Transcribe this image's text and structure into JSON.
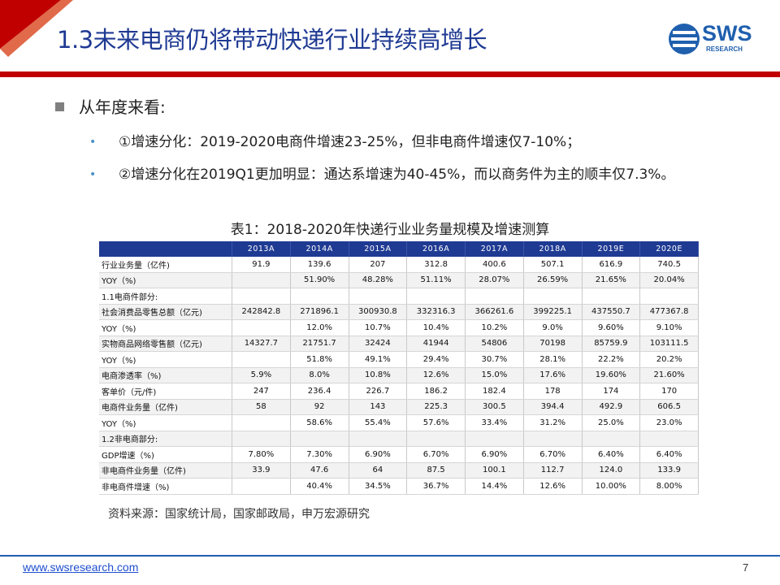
{
  "slide": {
    "title": "1.3未来电商仍将带动快递行业持续高增长",
    "logo_text": "SWS",
    "logo_sub": "RESEARCH",
    "heading": "从年度来看:",
    "bullets": [
      "①增速分化：2019-2020电商件增速23-25%，但非电商件增速仅7-10%；",
      "②增速分化在2019Q1更加明显：通达系增速为40-45%，而以商务件为主的顺丰仅7.3%。"
    ],
    "table_caption": "表1：2018-2020年快递行业业务量规模及增速测算",
    "source": "资料来源：国家统计局，国家邮政局，申万宏源研究",
    "url": "www.swsresearch.com",
    "page_number": "7"
  },
  "table": {
    "columns": [
      "",
      "2013A",
      "2014A",
      "2015A",
      "2016A",
      "2017A",
      "2018A",
      "2019E",
      "2020E"
    ],
    "rows": [
      [
        "行业业务量（亿件)",
        "91.9",
        "139.6",
        "207",
        "312.8",
        "400.6",
        "507.1",
        "616.9",
        "740.5"
      ],
      [
        "YOY（%)",
        "",
        "51.90%",
        "48.28%",
        "51.11%",
        "28.07%",
        "26.59%",
        "21.65%",
        "20.04%"
      ],
      [
        "1.1电商件部分:",
        "",
        "",
        "",
        "",
        "",
        "",
        "",
        ""
      ],
      [
        "社会消费品零售总额（亿元)",
        "242842.8",
        "271896.1",
        "300930.8",
        "332316.3",
        "366261.6",
        "399225.1",
        "437550.7",
        "477367.8"
      ],
      [
        "YOY（%)",
        "",
        "12.0%",
        "10.7%",
        "10.4%",
        "10.2%",
        "9.0%",
        "9.60%",
        "9.10%"
      ],
      [
        "实物商品网络零售额（亿元)",
        "14327.7",
        "21751.7",
        "32424",
        "41944",
        "54806",
        "70198",
        "85759.9",
        "103111.5"
      ],
      [
        "YOY（%)",
        "",
        "51.8%",
        "49.1%",
        "29.4%",
        "30.7%",
        "28.1%",
        "22.2%",
        "20.2%"
      ],
      [
        "电商渗透率（%)",
        "5.9%",
        "8.0%",
        "10.8%",
        "12.6%",
        "15.0%",
        "17.6%",
        "19.60%",
        "21.60%"
      ],
      [
        "客单价（元/件)",
        "247",
        "236.4",
        "226.7",
        "186.2",
        "182.4",
        "178",
        "174",
        "170"
      ],
      [
        "电商件业务量（亿件)",
        "58",
        "92",
        "143",
        "225.3",
        "300.5",
        "394.4",
        "492.9",
        "606.5"
      ],
      [
        "YOY（%)",
        "",
        "58.6%",
        "55.4%",
        "57.6%",
        "33.4%",
        "31.2%",
        "25.0%",
        "23.0%"
      ],
      [
        "1.2非电商部分:",
        "",
        "",
        "",
        "",
        "",
        "",
        "",
        ""
      ],
      [
        "GDP增速（%)",
        "7.80%",
        "7.30%",
        "6.90%",
        "6.70%",
        "6.90%",
        "6.70%",
        "6.40%",
        "6.40%"
      ],
      [
        "非电商件业务量（亿件)",
        "33.9",
        "47.6",
        "64",
        "87.5",
        "100.1",
        "112.7",
        "124.0",
        "133.9"
      ],
      [
        "非电商件增速（%)",
        "",
        "40.4%",
        "34.5%",
        "36.7%",
        "14.4%",
        "12.6%",
        "10.00%",
        "8.00%"
      ]
    ]
  },
  "colors": {
    "title": "#1f3a93",
    "accent_red": "#c00000",
    "header_bg": "#1f3a93",
    "logo": "#1f5fae"
  }
}
